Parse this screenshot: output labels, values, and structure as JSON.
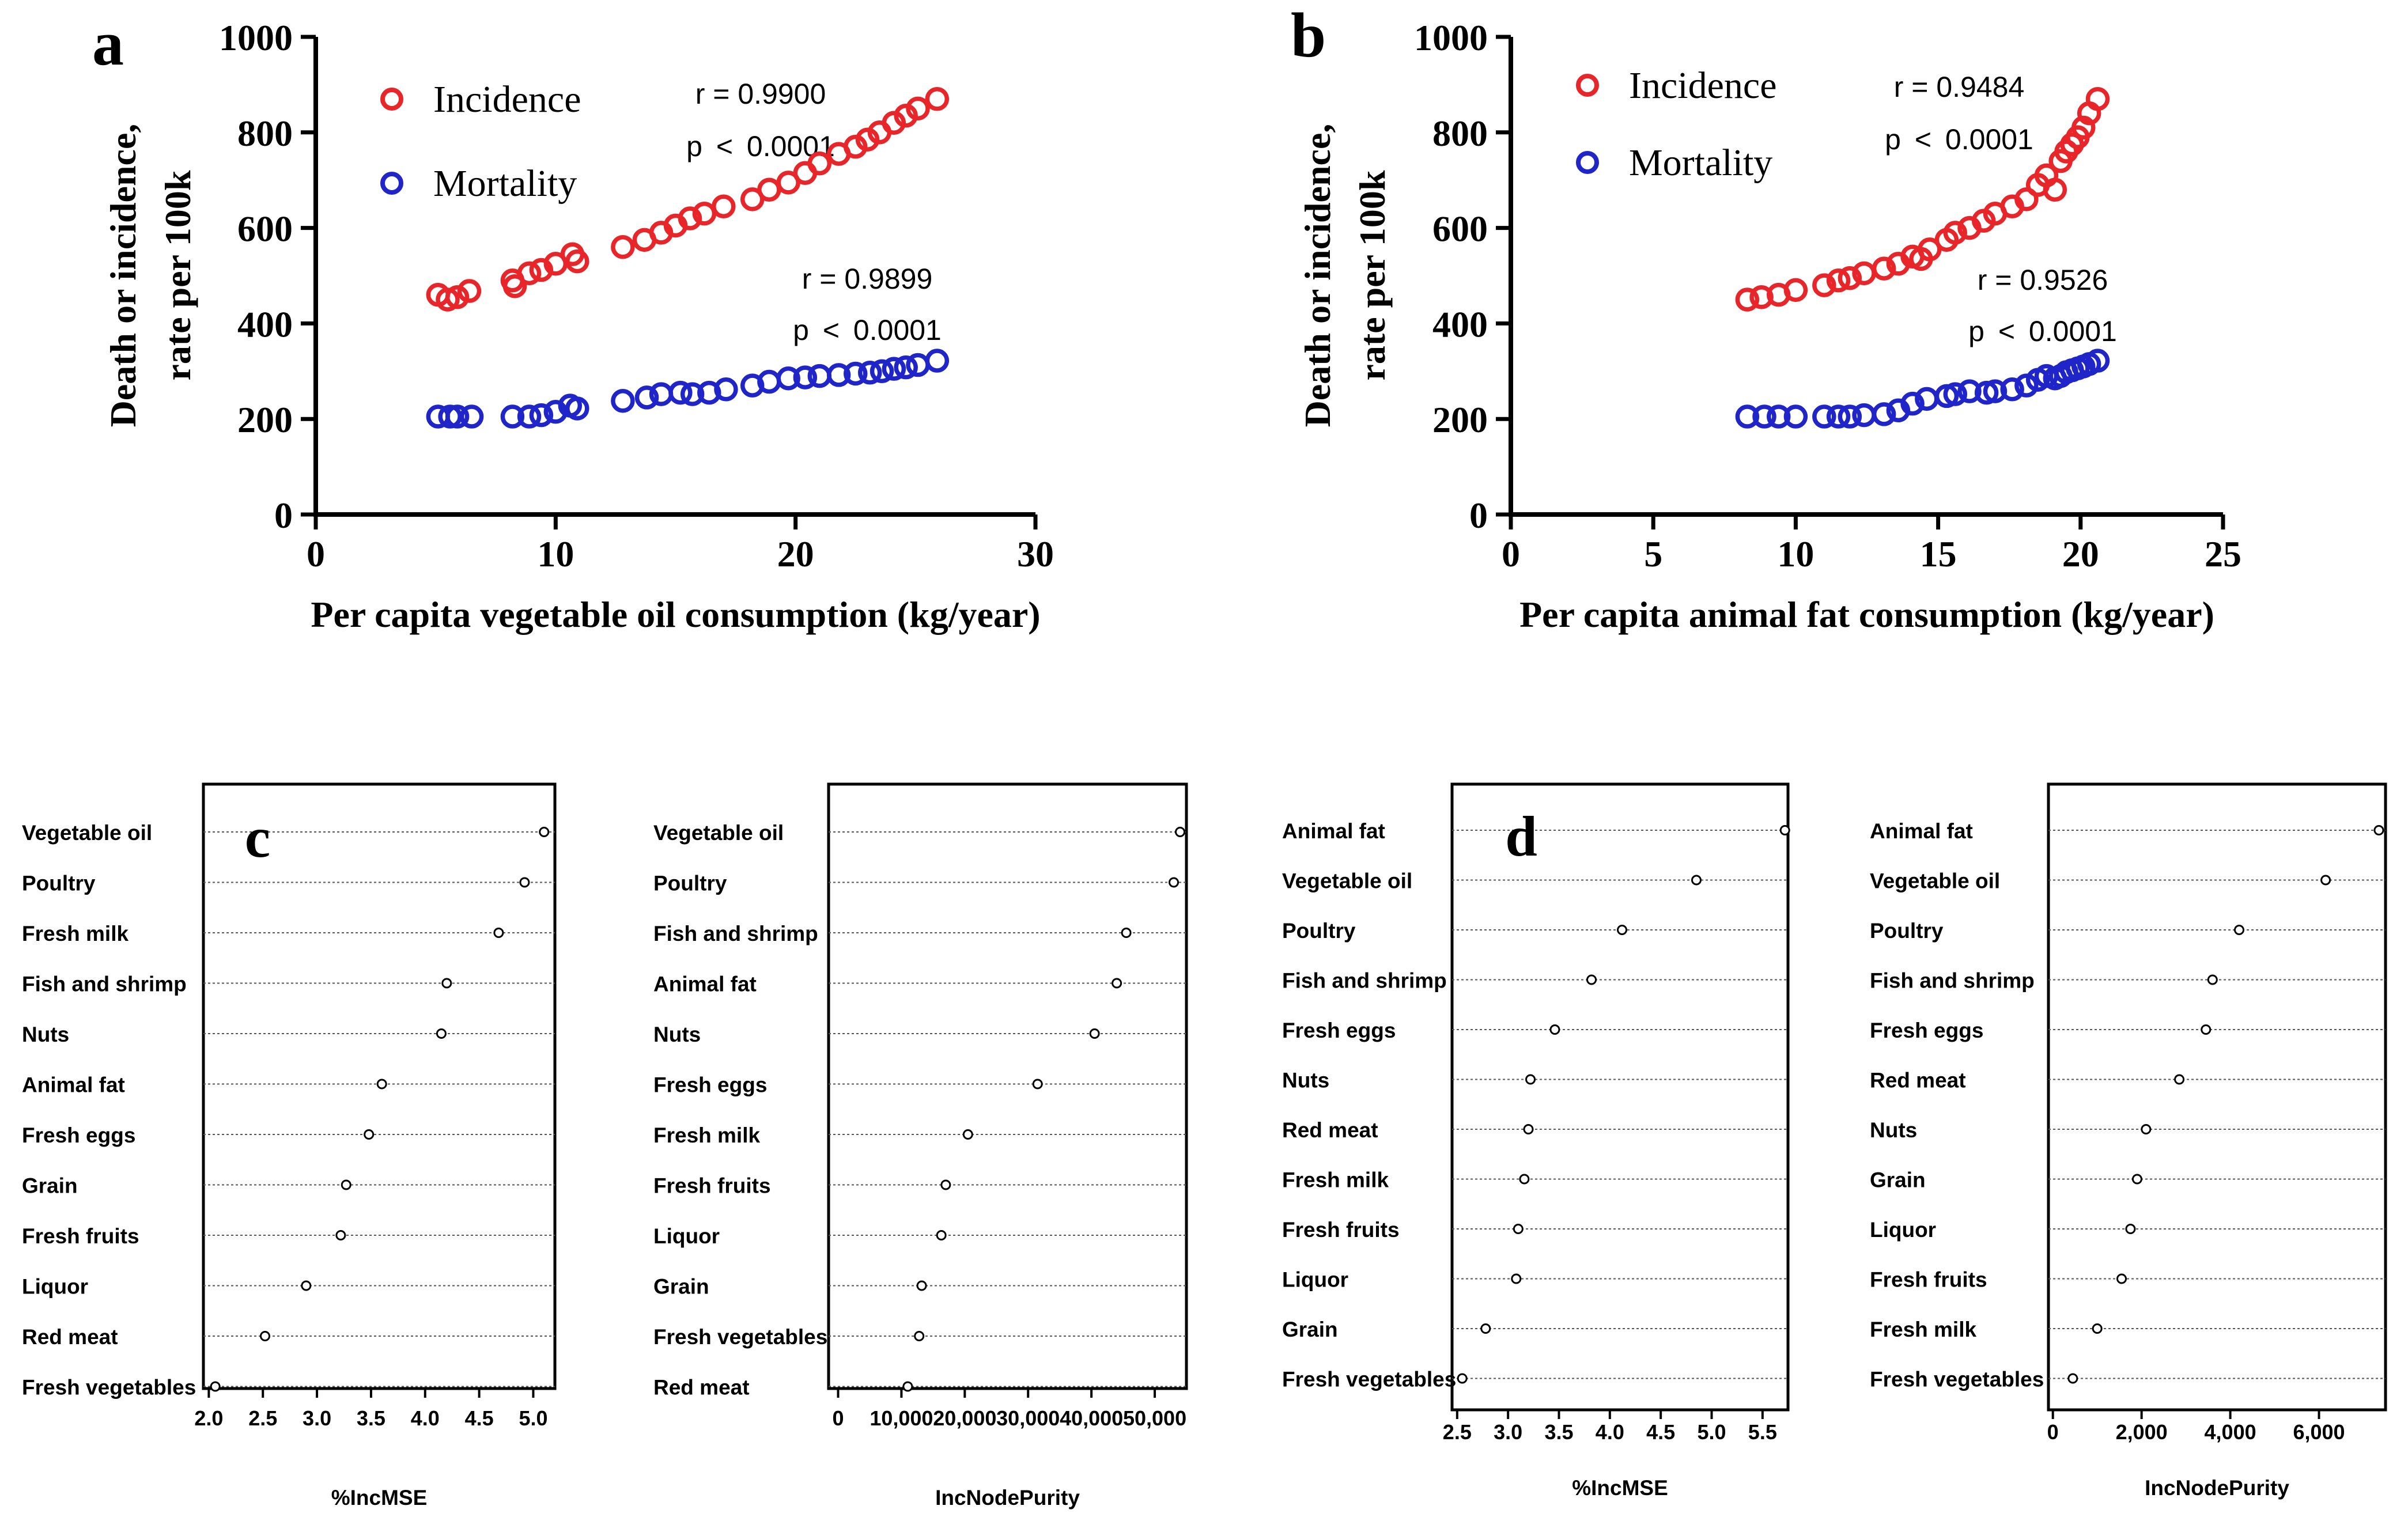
{
  "chart_data": [
    {
      "id": "a",
      "type": "scatter",
      "panel_label": "a",
      "xlabel": "Per capita vegetable oil consumption (kg/year)",
      "ylabel_lines": [
        "Death or incidence,",
        "rate per 100k"
      ],
      "xlim": [
        0,
        30
      ],
      "ylim": [
        0,
        1000
      ],
      "xticks": [
        0,
        10,
        20,
        30
      ],
      "yticks": [
        0,
        200,
        400,
        600,
        800,
        1000
      ],
      "legend": [
        {
          "label": "Incidence",
          "color": "#e8262a"
        },
        {
          "label": "Mortality",
          "color": "#1f25c9"
        }
      ],
      "annotations": [
        {
          "series": "Incidence",
          "r": "r = 0.9900",
          "p": "p  <  0.0001"
        },
        {
          "series": "Mortality",
          "r": "r = 0.9899",
          "p": "p  <  0.0001"
        }
      ],
      "series": [
        {
          "name": "Incidence",
          "color": "#e8262a",
          "x": [
            5.1,
            5.5,
            5.9,
            6.4,
            8.2,
            8.3,
            8.9,
            9.4,
            10.0,
            10.7,
            10.9,
            12.8,
            13.7,
            14.4,
            15.0,
            15.6,
            16.2,
            17.0,
            18.2,
            18.9,
            19.7,
            20.4,
            21.0,
            21.8,
            22.5,
            23.0,
            23.5,
            24.1,
            24.6,
            25.1,
            25.9
          ],
          "y": [
            460,
            450,
            455,
            468,
            490,
            478,
            505,
            512,
            525,
            545,
            530,
            560,
            575,
            590,
            605,
            620,
            630,
            645,
            660,
            680,
            695,
            715,
            735,
            755,
            770,
            785,
            800,
            820,
            835,
            850,
            870
          ]
        },
        {
          "name": "Mortality",
          "color": "#1f25c9",
          "x": [
            5.1,
            5.6,
            5.9,
            6.5,
            8.2,
            8.9,
            9.4,
            10.0,
            10.6,
            10.9,
            12.8,
            13.8,
            14.4,
            15.2,
            15.7,
            16.4,
            17.1,
            18.2,
            18.9,
            19.7,
            20.4,
            21.0,
            21.8,
            22.5,
            23.1,
            23.6,
            24.1,
            24.6,
            25.1,
            25.9
          ],
          "y": [
            205,
            205,
            205,
            205,
            205,
            205,
            208,
            215,
            228,
            222,
            238,
            245,
            252,
            255,
            252,
            255,
            262,
            270,
            278,
            285,
            287,
            290,
            292,
            295,
            297,
            300,
            305,
            308,
            313,
            322
          ]
        }
      ]
    },
    {
      "id": "b",
      "type": "scatter",
      "panel_label": "b",
      "xlabel": "Per capita animal fat consumption (kg/year)",
      "ylabel_lines": [
        "Death or incidence,",
        "rate per 100k"
      ],
      "xlim": [
        0,
        25
      ],
      "ylim": [
        0,
        1000
      ],
      "xticks": [
        0,
        5,
        10,
        15,
        20,
        25
      ],
      "yticks": [
        0,
        200,
        400,
        600,
        800,
        1000
      ],
      "legend": [
        {
          "label": "Incidence",
          "color": "#e8262a"
        },
        {
          "label": "Mortality",
          "color": "#1f25c9"
        }
      ],
      "annotations": [
        {
          "series": "Incidence",
          "r": "r = 0.9484",
          "p": "p  <  0.0001"
        },
        {
          "series": "Mortality",
          "r": "r = 0.9526",
          "p": "p  <  0.0001"
        }
      ],
      "series": [
        {
          "name": "Incidence",
          "color": "#e8262a",
          "x": [
            8.3,
            8.8,
            9.4,
            10.0,
            11.0,
            11.5,
            11.9,
            12.4,
            13.1,
            13.6,
            14.1,
            14.4,
            14.7,
            15.3,
            15.6,
            16.1,
            16.6,
            17.0,
            17.6,
            18.1,
            18.5,
            18.8,
            19.1,
            19.3,
            19.5,
            19.7,
            19.9,
            20.1,
            20.3,
            20.6
          ],
          "y": [
            450,
            455,
            460,
            470,
            480,
            490,
            495,
            505,
            515,
            525,
            540,
            535,
            555,
            575,
            590,
            600,
            615,
            630,
            645,
            660,
            690,
            710,
            680,
            740,
            760,
            775,
            790,
            810,
            840,
            870
          ]
        },
        {
          "name": "Mortality",
          "color": "#1f25c9",
          "x": [
            8.3,
            8.9,
            9.4,
            10.0,
            11.0,
            11.5,
            11.9,
            12.4,
            13.1,
            13.6,
            14.1,
            14.6,
            15.3,
            15.6,
            16.1,
            16.7,
            17.0,
            17.6,
            18.1,
            18.5,
            18.8,
            19.1,
            19.3,
            19.5,
            19.7,
            19.9,
            20.1,
            20.3,
            20.6
          ],
          "y": [
            205,
            205,
            205,
            205,
            205,
            205,
            205,
            208,
            210,
            218,
            232,
            242,
            248,
            252,
            258,
            255,
            258,
            262,
            270,
            282,
            290,
            285,
            290,
            298,
            302,
            306,
            310,
            315,
            322
          ]
        }
      ]
    },
    {
      "id": "c1",
      "type": "dotplot",
      "panel_label": "c",
      "xlabel": "%IncMSE",
      "xlim": [
        1.95,
        5.2
      ],
      "xticks": [
        "2.0",
        "2.5",
        "3.0",
        "3.5",
        "4.0",
        "4.5",
        "5.0"
      ],
      "categories": [
        "Vegetable oil",
        "Poultry",
        "Fresh milk",
        "Fish and shrimp",
        "Nuts",
        "Animal fat",
        "Fresh eggs",
        "Grain",
        "Fresh fruits",
        "Liquor",
        "Red meat",
        "Fresh vegetables"
      ],
      "values": [
        5.1,
        4.92,
        4.68,
        4.2,
        4.15,
        3.6,
        3.48,
        3.27,
        3.22,
        2.9,
        2.52,
        2.06
      ]
    },
    {
      "id": "c2",
      "type": "dotplot",
      "xlabel": "IncNodePurity",
      "xlim": [
        -1500,
        55000
      ],
      "xticks": [
        "0",
        "10,000",
        "20,000",
        "30,000",
        "40,000",
        "50,000"
      ],
      "categories": [
        "Vegetable oil",
        "Poultry",
        "Fish and shrimp",
        "Animal fat",
        "Nuts",
        "Fresh eggs",
        "Fresh milk",
        "Fresh fruits",
        "Liquor",
        "Grain",
        "Fresh vegetables",
        "Red meat"
      ],
      "values": [
        54000,
        53000,
        45500,
        44000,
        40500,
        31500,
        20500,
        17000,
        16300,
        13200,
        12800,
        11000
      ]
    },
    {
      "id": "d1",
      "type": "dotplot",
      "panel_label": "d",
      "xlabel": "%IncMSE",
      "xlim": [
        2.45,
        5.75
      ],
      "xticks": [
        "2.5",
        "3.0",
        "3.5",
        "4.0",
        "4.5",
        "5.0",
        "5.5"
      ],
      "categories": [
        "Animal fat",
        "Vegetable oil",
        "Poultry",
        "Fish and shrimp",
        "Fresh eggs",
        "Nuts",
        "Red meat",
        "Fresh milk",
        "Fresh fruits",
        "Liquor",
        "Grain",
        "Fresh vegetables"
      ],
      "values": [
        5.72,
        4.85,
        4.12,
        3.82,
        3.46,
        3.22,
        3.2,
        3.16,
        3.1,
        3.08,
        2.78,
        2.55
      ]
    },
    {
      "id": "d2",
      "type": "dotplot",
      "xlabel": "IncNodePurity",
      "xlim": [
        -100,
        7500
      ],
      "xticks": [
        "0",
        "2,000",
        "4,000",
        "6,000"
      ],
      "categories": [
        "Animal fat",
        "Vegetable oil",
        "Poultry",
        "Fish and shrimp",
        "Fresh eggs",
        "Red meat",
        "Nuts",
        "Grain",
        "Liquor",
        "Fresh fruits",
        "Fresh milk",
        "Fresh vegetables"
      ],
      "values": [
        7350,
        6150,
        4200,
        3600,
        3450,
        2850,
        2100,
        1900,
        1750,
        1550,
        1000,
        450
      ]
    }
  ]
}
